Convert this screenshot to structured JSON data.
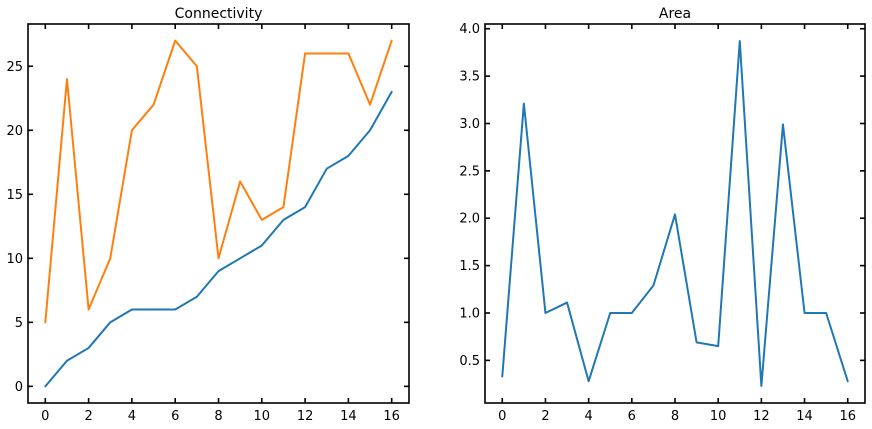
{
  "colors": {
    "blue": "#1f77b4",
    "orange": "#ff7f0e",
    "axis": "#000000"
  },
  "chart_data": [
    {
      "type": "line",
      "title": "Connectivity",
      "xlabel": "",
      "ylabel": "",
      "x": [
        0,
        1,
        2,
        3,
        4,
        5,
        6,
        7,
        8,
        9,
        10,
        11,
        12,
        13,
        14,
        15,
        16
      ],
      "xlim": [
        -0.8,
        16.8
      ],
      "ylim": [
        -1.3,
        28.3
      ],
      "xticks": [
        0,
        2,
        4,
        6,
        8,
        10,
        12,
        14,
        16
      ],
      "xtick_labels": [
        "0",
        "2",
        "4",
        "6",
        "8",
        "10",
        "12",
        "14",
        "16"
      ],
      "yticks": [
        0,
        5,
        10,
        15,
        20,
        25
      ],
      "ytick_labels": [
        "0",
        "5",
        "10",
        "15",
        "20",
        "25"
      ],
      "grid": false,
      "legend": "none",
      "series": [
        {
          "color": "#1f77b4",
          "values": [
            0,
            2,
            3,
            5,
            6,
            6,
            6,
            7,
            9,
            10,
            11,
            13,
            14,
            17,
            18,
            20,
            23
          ]
        },
        {
          "color": "#ff7f0e",
          "values": [
            5,
            24,
            6,
            10,
            20,
            22,
            27,
            25,
            10,
            16,
            13,
            14,
            26,
            26,
            26,
            22,
            27
          ]
        }
      ]
    },
    {
      "type": "line",
      "title": "Area",
      "xlabel": "",
      "ylabel": "",
      "x": [
        0,
        1,
        2,
        3,
        4,
        5,
        6,
        7,
        8,
        9,
        10,
        11,
        12,
        13,
        14,
        15,
        16
      ],
      "xlim": [
        -0.8,
        16.8
      ],
      "ylim": [
        0.05,
        4.05
      ],
      "xticks": [
        0,
        2,
        4,
        6,
        8,
        10,
        12,
        14,
        16
      ],
      "xtick_labels": [
        "0",
        "2",
        "4",
        "6",
        "8",
        "10",
        "12",
        "14",
        "16"
      ],
      "yticks": [
        0.5,
        1.0,
        1.5,
        2.0,
        2.5,
        3.0,
        3.5,
        4.0
      ],
      "ytick_labels": [
        "0.5",
        "1.0",
        "1.5",
        "2.0",
        "2.5",
        "3.0",
        "3.5",
        "4.0"
      ],
      "grid": false,
      "legend": "none",
      "series": [
        {
          "color": "#1f77b4",
          "values": [
            0.33,
            3.21,
            1.0,
            1.11,
            0.28,
            1.0,
            1.0,
            1.29,
            2.04,
            0.69,
            0.65,
            3.87,
            0.23,
            2.99,
            1.0,
            1.0,
            0.28
          ]
        }
      ]
    }
  ]
}
